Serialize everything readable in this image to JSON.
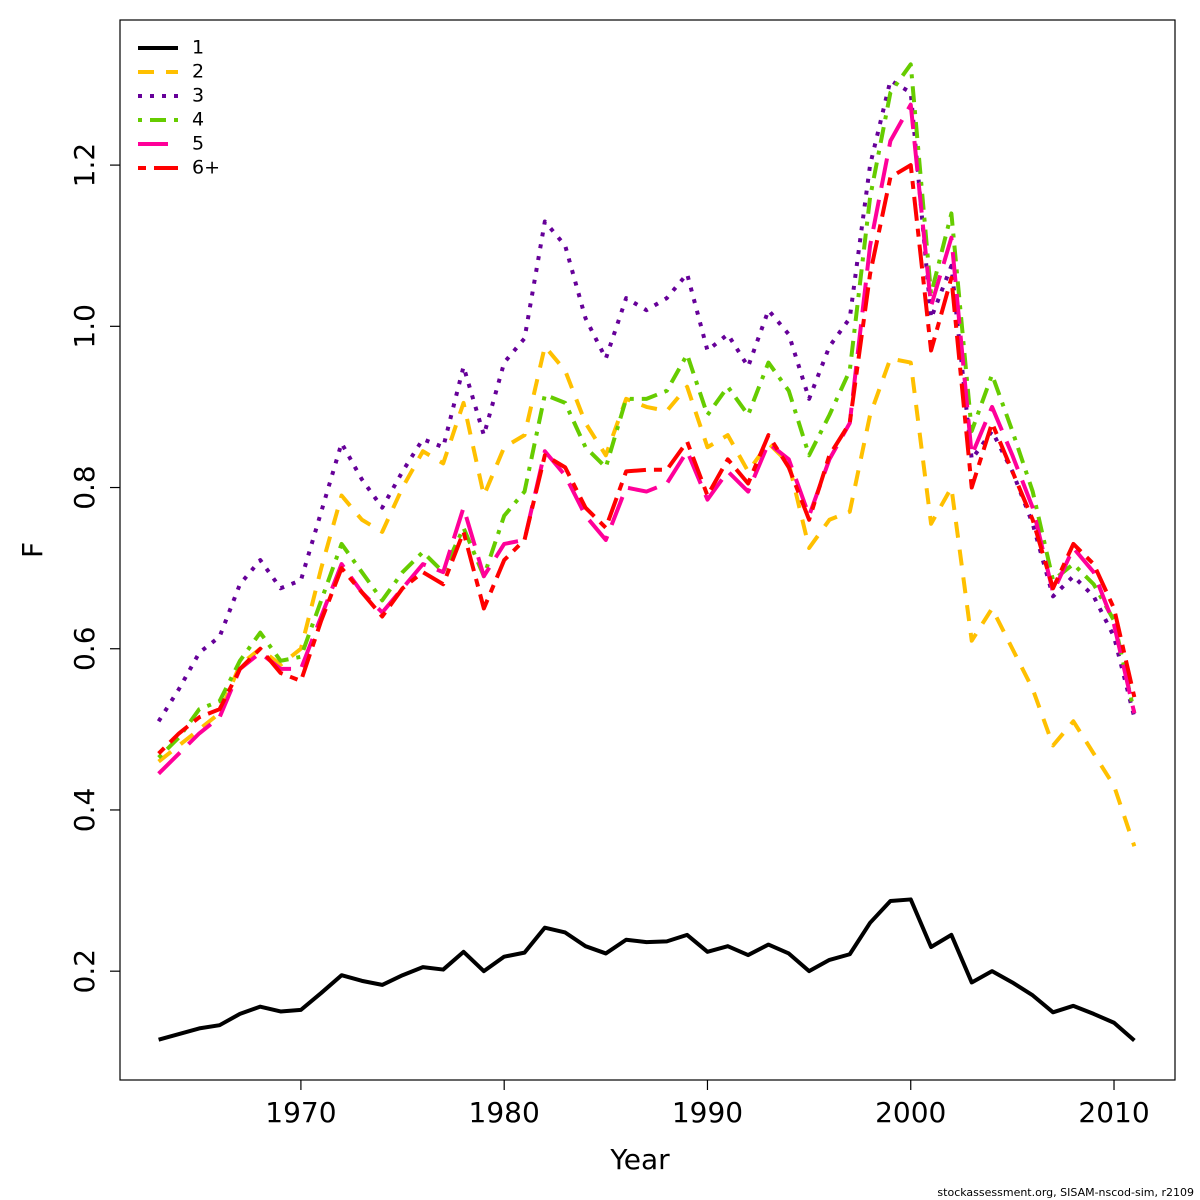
{
  "chart_data": {
    "type": "line",
    "xlabel": "Year",
    "ylabel": "F",
    "footer": "stockassessment.org, SISAM-nscod-sim, r2109",
    "x": [
      1963,
      1964,
      1965,
      1966,
      1967,
      1968,
      1969,
      1970,
      1971,
      1972,
      1973,
      1974,
      1975,
      1976,
      1977,
      1978,
      1979,
      1980,
      1981,
      1982,
      1983,
      1984,
      1985,
      1986,
      1987,
      1988,
      1989,
      1990,
      1991,
      1992,
      1993,
      1994,
      1995,
      1996,
      1997,
      1998,
      1999,
      2000,
      2001,
      2002,
      2003,
      2004,
      2005,
      2006,
      2007,
      2008,
      2009,
      2010,
      2011
    ],
    "xlim": [
      1961.1,
      2013.0
    ],
    "xticks": [
      1970,
      1980,
      1990,
      2000,
      2010
    ],
    "ylim": [
      0.065,
      1.38
    ],
    "yticks": [
      0.2,
      0.4,
      0.6,
      0.8,
      {
        "value": 1,
        "label": "1.0"
      },
      1.2
    ],
    "legend": "top-left",
    "series": [
      {
        "name": "1",
        "color": "#000000",
        "dash": "solid",
        "values": [
          0.115,
          0.122,
          0.129,
          0.133,
          0.147,
          0.156,
          0.15,
          0.152,
          0.173,
          0.195,
          0.188,
          0.183,
          0.195,
          0.205,
          0.202,
          0.224,
          0.2,
          0.218,
          0.223,
          0.254,
          0.248,
          0.231,
          0.222,
          0.239,
          0.236,
          0.237,
          0.245,
          0.224,
          0.231,
          0.22,
          0.233,
          0.222,
          0.2,
          0.214,
          0.221,
          0.26,
          0.287,
          0.289,
          0.23,
          0.245,
          0.186,
          0.2,
          0.186,
          0.17,
          0.149,
          0.157,
          0.147,
          0.136,
          0.114
        ]
      },
      {
        "name": "2",
        "color": "#ffc000",
        "dash": "dashed",
        "values": [
          0.46,
          0.48,
          0.5,
          0.52,
          0.58,
          0.6,
          0.58,
          0.6,
          0.7,
          0.79,
          0.76,
          0.745,
          0.8,
          0.845,
          0.83,
          0.905,
          0.79,
          0.85,
          0.865,
          0.975,
          0.945,
          0.88,
          0.84,
          0.91,
          0.9,
          0.895,
          0.925,
          0.85,
          0.865,
          0.82,
          0.855,
          0.83,
          0.725,
          0.76,
          0.77,
          0.89,
          0.96,
          0.955,
          0.755,
          0.8,
          0.61,
          0.65,
          0.6,
          0.55,
          0.48,
          0.51,
          0.47,
          0.43,
          0.355
        ]
      },
      {
        "name": "3",
        "color": "#660099",
        "dash": "dotted",
        "values": [
          0.51,
          0.55,
          0.595,
          0.615,
          0.68,
          0.71,
          0.675,
          0.685,
          0.77,
          0.855,
          0.81,
          0.775,
          0.82,
          0.86,
          0.85,
          0.95,
          0.865,
          0.955,
          0.985,
          1.13,
          1.1,
          1.01,
          0.96,
          1.035,
          1.02,
          1.035,
          1.065,
          0.97,
          0.99,
          0.95,
          1.02,
          0.99,
          0.91,
          0.975,
          1.01,
          1.2,
          1.305,
          1.29,
          1.01,
          1.075,
          0.835,
          0.87,
          0.82,
          0.755,
          0.665,
          0.69,
          0.665,
          0.615,
          0.515
        ]
      },
      {
        "name": "4",
        "color": "#66cc00",
        "dash": "dotdash",
        "values": [
          0.465,
          0.49,
          0.525,
          0.535,
          0.585,
          0.62,
          0.585,
          0.59,
          0.66,
          0.73,
          0.695,
          0.66,
          0.695,
          0.72,
          0.695,
          0.75,
          0.69,
          0.765,
          0.795,
          0.915,
          0.905,
          0.85,
          0.825,
          0.91,
          0.91,
          0.92,
          0.965,
          0.89,
          0.925,
          0.89,
          0.955,
          0.92,
          0.84,
          0.89,
          0.945,
          1.16,
          1.29,
          1.325,
          1.04,
          1.14,
          0.87,
          0.94,
          0.87,
          0.795,
          0.685,
          0.705,
          0.68,
          0.635,
          0.52
        ]
      },
      {
        "name": "5",
        "color": "#ff0099",
        "dash": "longdash",
        "values": [
          0.445,
          0.47,
          0.495,
          0.515,
          0.575,
          0.595,
          0.575,
          0.575,
          0.64,
          0.705,
          0.67,
          0.645,
          0.675,
          0.705,
          0.695,
          0.775,
          0.69,
          0.73,
          0.735,
          0.845,
          0.815,
          0.765,
          0.735,
          0.8,
          0.795,
          0.805,
          0.845,
          0.785,
          0.82,
          0.795,
          0.855,
          0.835,
          0.765,
          0.835,
          0.88,
          1.1,
          1.23,
          1.275,
          1.025,
          1.11,
          0.84,
          0.9,
          0.84,
          0.775,
          0.67,
          0.725,
          0.695,
          0.63,
          0.52
        ]
      },
      {
        "name": "6+",
        "color": "#ff0000",
        "dash": "twodash",
        "values": [
          0.47,
          0.495,
          0.515,
          0.525,
          0.575,
          0.6,
          0.57,
          0.56,
          0.635,
          0.7,
          0.67,
          0.64,
          0.675,
          0.695,
          0.68,
          0.745,
          0.65,
          0.71,
          0.735,
          0.84,
          0.825,
          0.775,
          0.75,
          0.82,
          0.822,
          0.822,
          0.857,
          0.79,
          0.835,
          0.805,
          0.865,
          0.825,
          0.76,
          0.84,
          0.88,
          1.065,
          1.185,
          1.2,
          0.97,
          1.06,
          0.8,
          0.88,
          0.82,
          0.76,
          0.675,
          0.73,
          0.705,
          0.65,
          0.54
        ]
      }
    ]
  }
}
